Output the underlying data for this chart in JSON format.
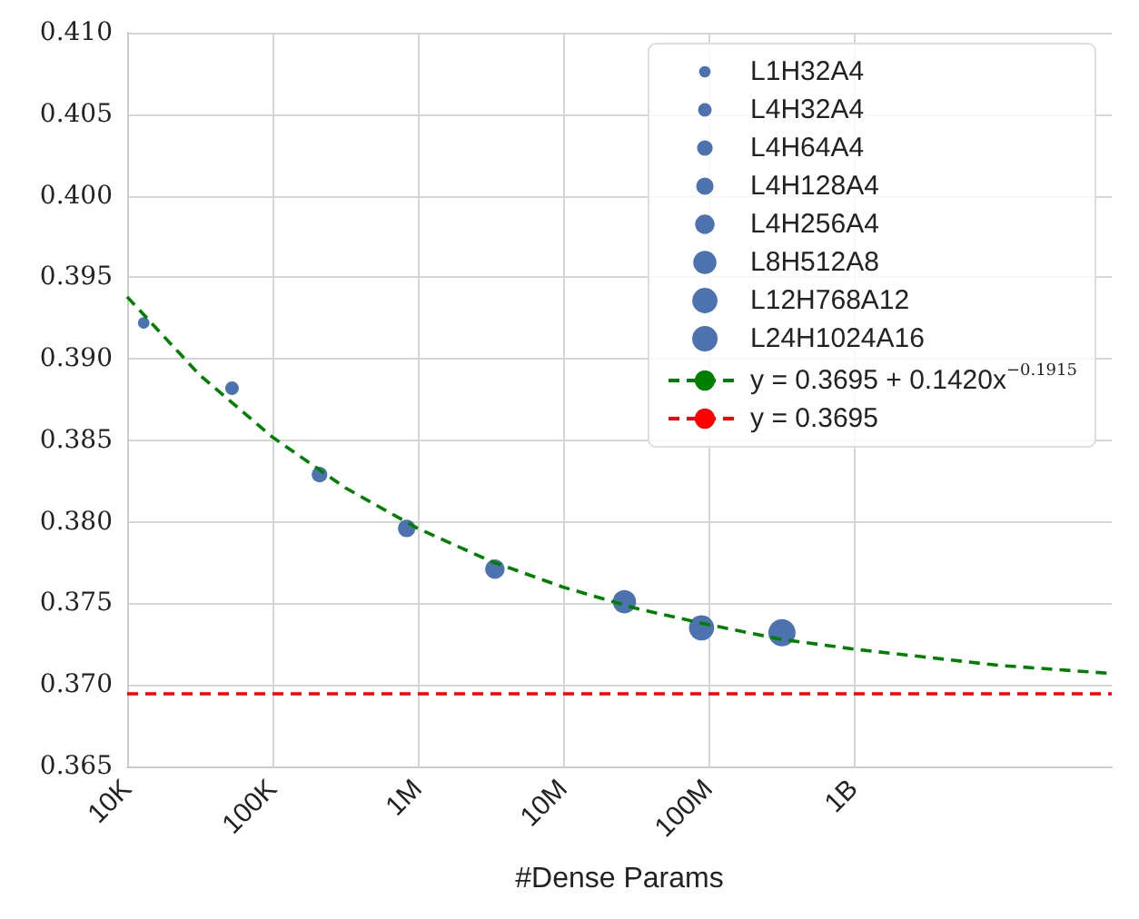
{
  "chart_data": {
    "type": "bubble",
    "xlabel": "#Dense Params",
    "xlim": [
      10000,
      60000000000
    ],
    "xticks": [
      {
        "value": 10000,
        "label": "10K"
      },
      {
        "value": 100000,
        "label": "100K"
      },
      {
        "value": 1000000,
        "label": "1M"
      },
      {
        "value": 10000000,
        "label": "10M"
      },
      {
        "value": 100000000,
        "label": "100M"
      },
      {
        "value": 1000000000,
        "label": "1B"
      }
    ],
    "ylim": [
      0.365,
      0.41
    ],
    "yticks": [
      0.365,
      {
        "value": 0.37,
        "label": "0.370"
      },
      0.375,
      {
        "value": 0.38,
        "label": "0.380"
      },
      0.385,
      {
        "value": 0.39,
        "label": "0.390"
      },
      0.395,
      {
        "value": 0.4,
        "label": "0.400"
      },
      0.405,
      {
        "value": 0.41,
        "label": "0.410"
      }
    ],
    "grid": true,
    "legend": "top right",
    "marker": "circle",
    "log": "x",
    "series": [
      {
        "name": "L1H32A4",
        "color": "#4c72b0",
        "x": [
          13000
        ],
        "values": [
          0.3922
        ],
        "sizes": [
          0.18
        ]
      },
      {
        "name": "L4H32A4",
        "color": "#4c72b0",
        "x": [
          52700
        ],
        "values": [
          0.3882
        ],
        "sizes": [
          0.25
        ]
      },
      {
        "name": "L4H64A4",
        "color": "#4c72b0",
        "x": [
          211000
        ],
        "values": [
          0.3829
        ],
        "sizes": [
          0.33
        ]
      },
      {
        "name": "L4H128A4",
        "color": "#4c72b0",
        "x": [
          840000
        ],
        "values": [
          0.3796
        ],
        "sizes": [
          0.41
        ]
      },
      {
        "name": "L4H256A4",
        "color": "#4c72b0",
        "x": [
          3400000
        ],
        "values": [
          0.3771
        ],
        "sizes": [
          0.51
        ]
      },
      {
        "name": "L8H512A8",
        "color": "#4c72b0",
        "x": [
          26500000
        ],
        "values": [
          0.3751
        ],
        "sizes": [
          0.73
        ]
      },
      {
        "name": "L12H768A12",
        "color": "#4c72b0",
        "x": [
          90000000
        ],
        "values": [
          0.3735
        ],
        "sizes": [
          0.86
        ]
      },
      {
        "name": "L24H1024A16",
        "color": "#4c72b0",
        "x": [
          322000000
        ],
        "values": [
          0.3732
        ],
        "sizes": [
          1
        ]
      },
      {
        "name": "y = 0.3695 + 0.1420x$^{−0.1915}$",
        "type": "line",
        "marker": "none",
        "color": "#008000",
        "line_style": "dashed",
        "x": [
          10000,
          31600,
          100000,
          316000,
          1000000,
          3160000,
          10000000,
          31600000,
          100000000,
          316000000,
          1000000000,
          3160000000,
          10000000000,
          60000000000
        ],
        "values": [
          0.3938,
          0.389,
          0.3852,
          0.3821,
          0.3796,
          0.3776,
          0.376,
          0.3747,
          0.3737,
          0.3728,
          0.3722,
          0.3717,
          0.3712,
          0.3707
        ]
      }
    ],
    "ref_lines": [
      {
        "axis": "y",
        "value": 0.3695,
        "label": "y = 0.3695",
        "color": "#ff0000",
        "line_style": "dashed"
      }
    ]
  }
}
